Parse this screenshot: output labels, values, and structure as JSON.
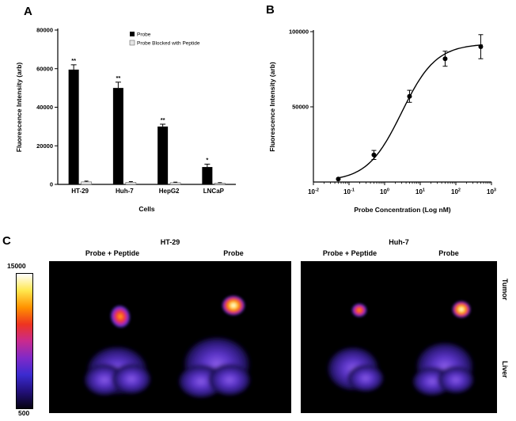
{
  "figure": {
    "panel_a_label": "A",
    "panel_b_label": "B",
    "panel_c_label": "C"
  },
  "chart_data": [
    {
      "type": "bar",
      "panel": "A",
      "title": "",
      "xlabel": "Cells",
      "ylabel": "Fluorescence Intensity (arb)",
      "ylim": [
        0,
        80000
      ],
      "yticks": [
        0,
        20000,
        40000,
        60000,
        80000
      ],
      "categories": [
        "HT-29",
        "Huh-7",
        "HepG2",
        "LNCaP"
      ],
      "series": [
        {
          "name": "Probe",
          "color": "#000000",
          "values": [
            59500,
            50000,
            30000,
            9000
          ],
          "errors": [
            2500,
            3000,
            1200,
            1500
          ]
        },
        {
          "name": "Probe Blocked with Peptide",
          "color": "#e6e6e6",
          "values": [
            1300,
            1100,
            900,
            700
          ],
          "errors": [
            400,
            350,
            250,
            200
          ]
        }
      ],
      "significance": [
        "**",
        "**",
        "**",
        "*"
      ],
      "legend_position": "top-right",
      "grid": false
    },
    {
      "type": "scatter",
      "panel": "B",
      "title": "",
      "xlabel": "Probe Concentration (Log nM)",
      "ylabel": "Fluorescence Intensity (arb)",
      "xscale": "log",
      "xlim": [
        0.01,
        1000
      ],
      "ylim": [
        0,
        100000
      ],
      "yticks": [
        50000,
        100000
      ],
      "x": [
        0.05,
        0.5,
        5,
        50,
        500
      ],
      "y": [
        2000,
        18000,
        57000,
        82000,
        90000
      ],
      "yerr": [
        600,
        3000,
        4000,
        5000,
        8000
      ],
      "fit": {
        "model": "sigmoidal dose-response",
        "bottom": 500,
        "top": 92000,
        "ec50": 3,
        "hill": 0.9
      },
      "grid": false
    }
  ],
  "panel_c": {
    "colorbar": {
      "max_label": "15000",
      "min_label": "500",
      "colors": [
        "#060211",
        "#22107a",
        "#3b2bd0",
        "#8029c8",
        "#c92a8e",
        "#ee3420",
        "#ff9200",
        "#ffe74d",
        "#ffffff"
      ]
    },
    "groups": [
      {
        "title": "HT-29",
        "left_label": "Probe + Peptide",
        "right_label": "Probe"
      },
      {
        "title": "Huh-7",
        "left_label": "Probe + Peptide",
        "right_label": "Probe"
      }
    ],
    "row_labels": [
      "Tumor",
      "Liver"
    ]
  }
}
